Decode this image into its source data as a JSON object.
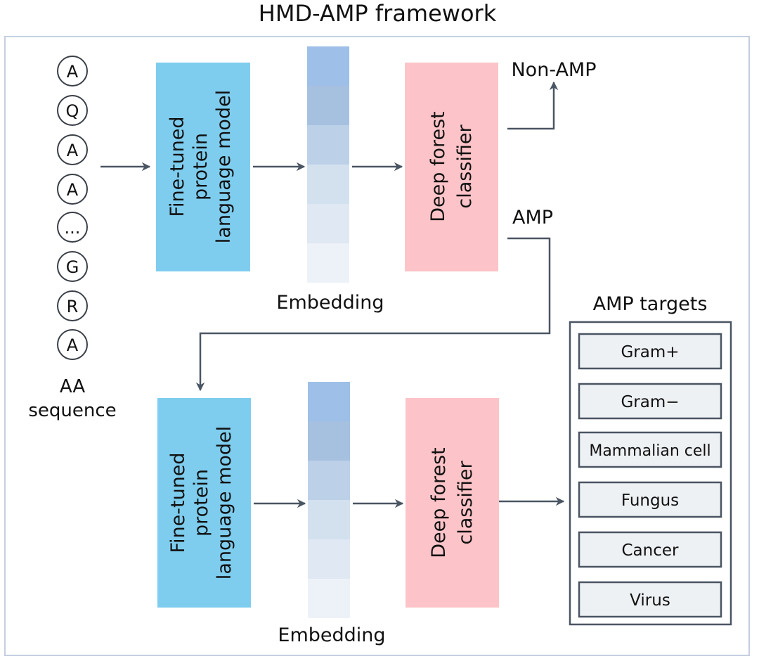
{
  "title": "HMD-AMP framework",
  "sequence": {
    "residues": [
      "A",
      "Q",
      "A",
      "A",
      "...",
      "G",
      "R",
      "A"
    ],
    "label_lines": [
      "AA",
      "sequence"
    ]
  },
  "stage1": {
    "model_lines": [
      "Fine-tuned",
      "protein",
      "language model"
    ],
    "embedding_label": "Embedding",
    "classifier_lines": [
      "Deep forest",
      "classifier"
    ],
    "output_negative": "Non-AMP",
    "output_positive": "AMP"
  },
  "stage2": {
    "model_lines": [
      "Fine-tuned",
      "protein",
      "language model"
    ],
    "embedding_label": "Embedding",
    "classifier_lines": [
      "Deep forest",
      "classifier"
    ]
  },
  "targets": {
    "title": "AMP targets",
    "items": [
      "Gram+",
      "Gram−",
      "Mammalian cell",
      "Fungus",
      "Cancer",
      "Virus"
    ]
  },
  "colors": {
    "model_box": "#7fcdee",
    "classifier_box": "#fcc4c8",
    "embedding_gradient": [
      "#9dbfe8",
      "#a6c0e0",
      "#bcd0e8",
      "#d3e1ef",
      "#dfe8f3",
      "#edf2f9"
    ],
    "target_item_fill": "#eef1f4",
    "line": "#4a5563",
    "frame": "#c4cfe0"
  }
}
